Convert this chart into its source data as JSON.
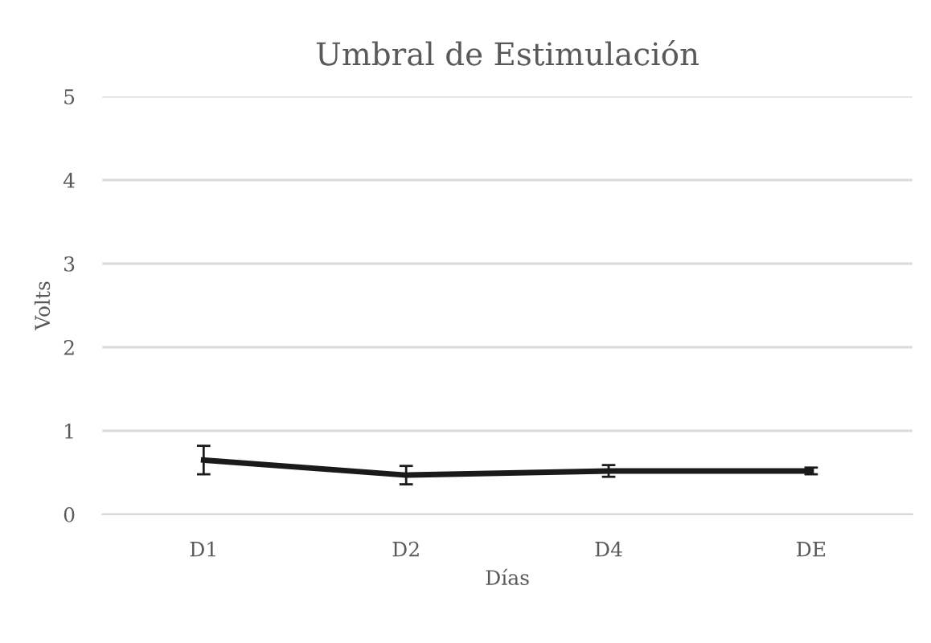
{
  "chart_data": {
    "type": "line",
    "title": "Umbral de Estimulación",
    "xlabel": "Días",
    "ylabel": "Volts",
    "categories": [
      "D1",
      "D2",
      "D4",
      "DE"
    ],
    "series": [
      {
        "color": "#1a1a1a",
        "values": [
          0.65,
          0.47,
          0.52,
          0.52
        ],
        "errors": [
          0.17,
          0.11,
          0.07,
          0.04
        ]
      }
    ],
    "ylim": [
      0,
      5
    ],
    "yticks": [
      0,
      1,
      2,
      3,
      4,
      5
    ],
    "grid": "y",
    "marker": "none",
    "line_style": "solid",
    "legend": false
  }
}
